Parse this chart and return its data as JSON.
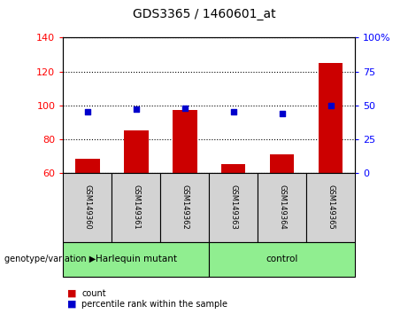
{
  "title": "GDS3365 / 1460601_at",
  "samples": [
    "GSM149360",
    "GSM149361",
    "GSM149362",
    "GSM149363",
    "GSM149364",
    "GSM149365"
  ],
  "bar_values": [
    68,
    85,
    97,
    65,
    71,
    125
  ],
  "percentile_values": [
    45,
    47,
    48,
    45,
    44,
    50
  ],
  "bar_color": "#cc0000",
  "dot_color": "#0000cc",
  "ylim_left": [
    60,
    140
  ],
  "ylim_right": [
    0,
    100
  ],
  "yticks_left": [
    60,
    80,
    100,
    120,
    140
  ],
  "yticks_right": [
    0,
    25,
    50,
    75,
    100
  ],
  "ytick_labels_right": [
    "0",
    "25",
    "50",
    "75",
    "100%"
  ],
  "group1_label": "Harlequin mutant",
  "group2_label": "control",
  "group1_indices": [
    0,
    1,
    2
  ],
  "group2_indices": [
    3,
    4,
    5
  ],
  "group_label_text": "genotype/variation",
  "legend_count_label": "count",
  "legend_percentile_label": "percentile rank within the sample",
  "bar_width": 0.5,
  "baseline": 60,
  "header_bg_color": "#d3d3d3",
  "group_bg_color": "#90ee90"
}
